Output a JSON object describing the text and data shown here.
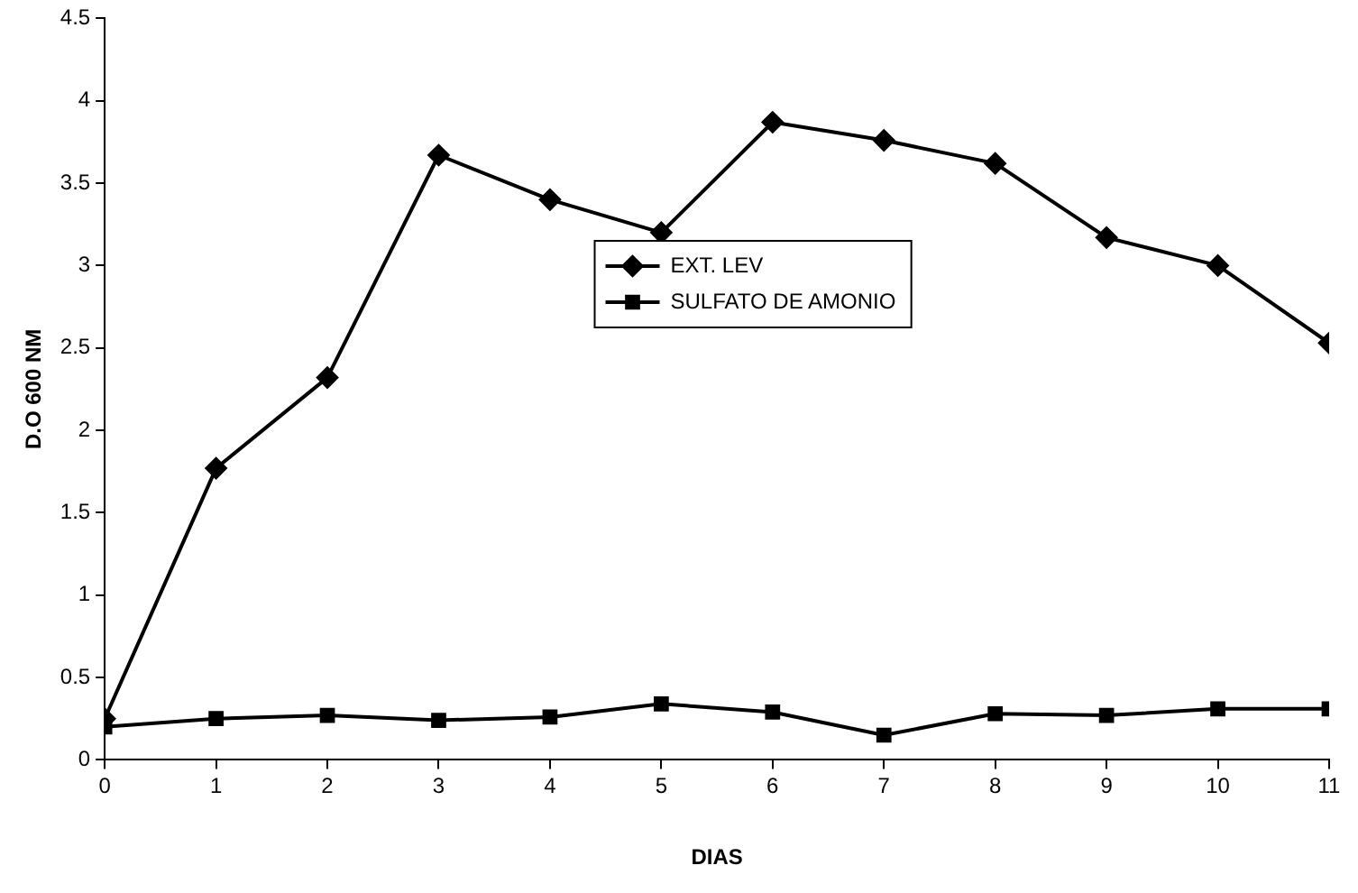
{
  "chart_data": {
    "type": "line",
    "xlabel": "DIAS",
    "ylabel": "D.O 600 NM",
    "x": [
      0,
      1,
      2,
      3,
      4,
      5,
      6,
      7,
      8,
      9,
      10,
      11
    ],
    "xlim": [
      0,
      11
    ],
    "xticks": [
      0,
      1,
      2,
      3,
      4,
      5,
      6,
      7,
      8,
      9,
      10,
      11
    ],
    "ylim": [
      0,
      4.5
    ],
    "yticks": [
      0,
      0.5,
      1,
      1.5,
      2,
      2.5,
      3,
      3.5,
      4,
      4.5
    ],
    "grid": false,
    "legend": "center",
    "line_style": "solid",
    "series": [
      {
        "name": "EXT. LEV",
        "color": "#000000",
        "marker": "diamond",
        "values": [
          0.25,
          1.77,
          2.32,
          3.67,
          3.4,
          3.2,
          3.87,
          3.76,
          3.62,
          3.17,
          3.0,
          2.53
        ]
      },
      {
        "name": "SULFATO DE AMONIO",
        "color": "#000000",
        "marker": "square",
        "values": [
          0.2,
          0.25,
          0.27,
          0.24,
          0.26,
          0.34,
          0.29,
          0.15,
          0.28,
          0.27,
          0.31,
          0.31
        ]
      }
    ]
  }
}
